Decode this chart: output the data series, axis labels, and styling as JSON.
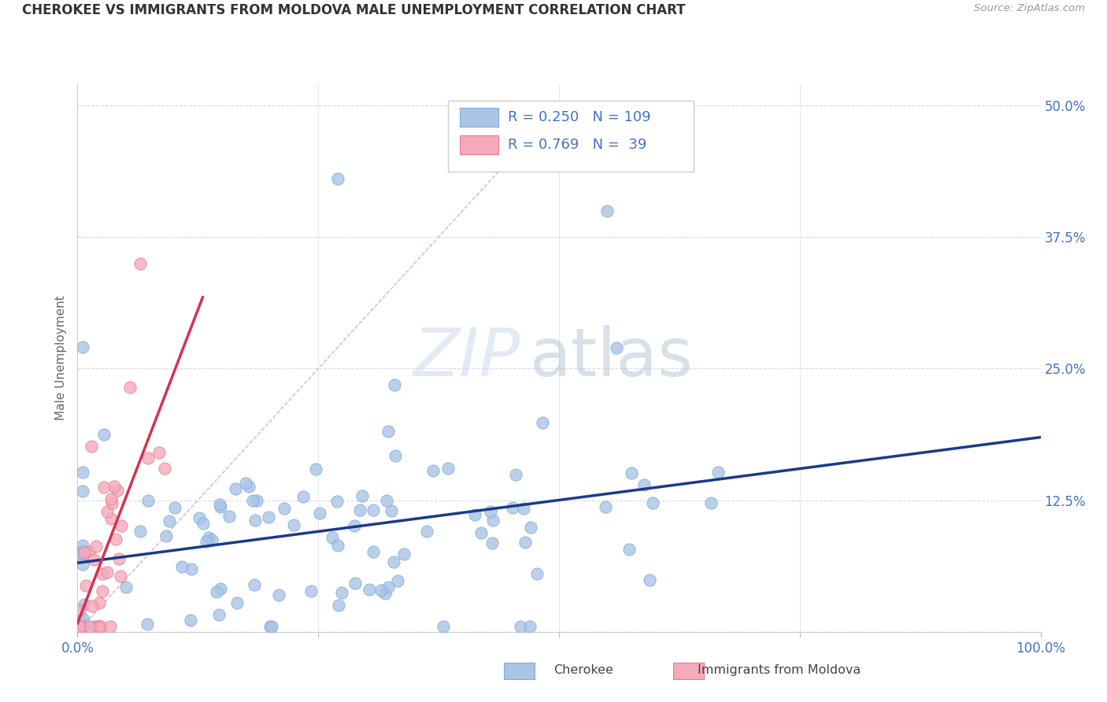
{
  "title": "CHEROKEE VS IMMIGRANTS FROM MOLDOVA MALE UNEMPLOYMENT CORRELATION CHART",
  "source": "Source: ZipAtlas.com",
  "ylabel": "Male Unemployment",
  "xlim": [
    0,
    1.0
  ],
  "ylim": [
    -0.02,
    0.54
  ],
  "plot_ylim": [
    0,
    0.52
  ],
  "cherokee_color": "#aac4e4",
  "cherokee_edge": "#7aaae0",
  "moldova_color": "#f4aabc",
  "moldova_edge": "#e87890",
  "trendline_cherokee": "#1a3a8c",
  "trendline_moldova": "#d83050",
  "diagonal_color": "#d0b0b8",
  "legend_cherokee_R": "0.250",
  "legend_cherokee_N": "109",
  "legend_moldova_R": "0.769",
  "legend_moldova_N": "39",
  "watermark_zip": "ZIP",
  "watermark_atlas": "atlas",
  "background_color": "#ffffff",
  "grid_color": "#d8d8e8",
  "title_color": "#333333",
  "source_color": "#999999",
  "tick_color": "#4472c4",
  "label_color": "#666666"
}
